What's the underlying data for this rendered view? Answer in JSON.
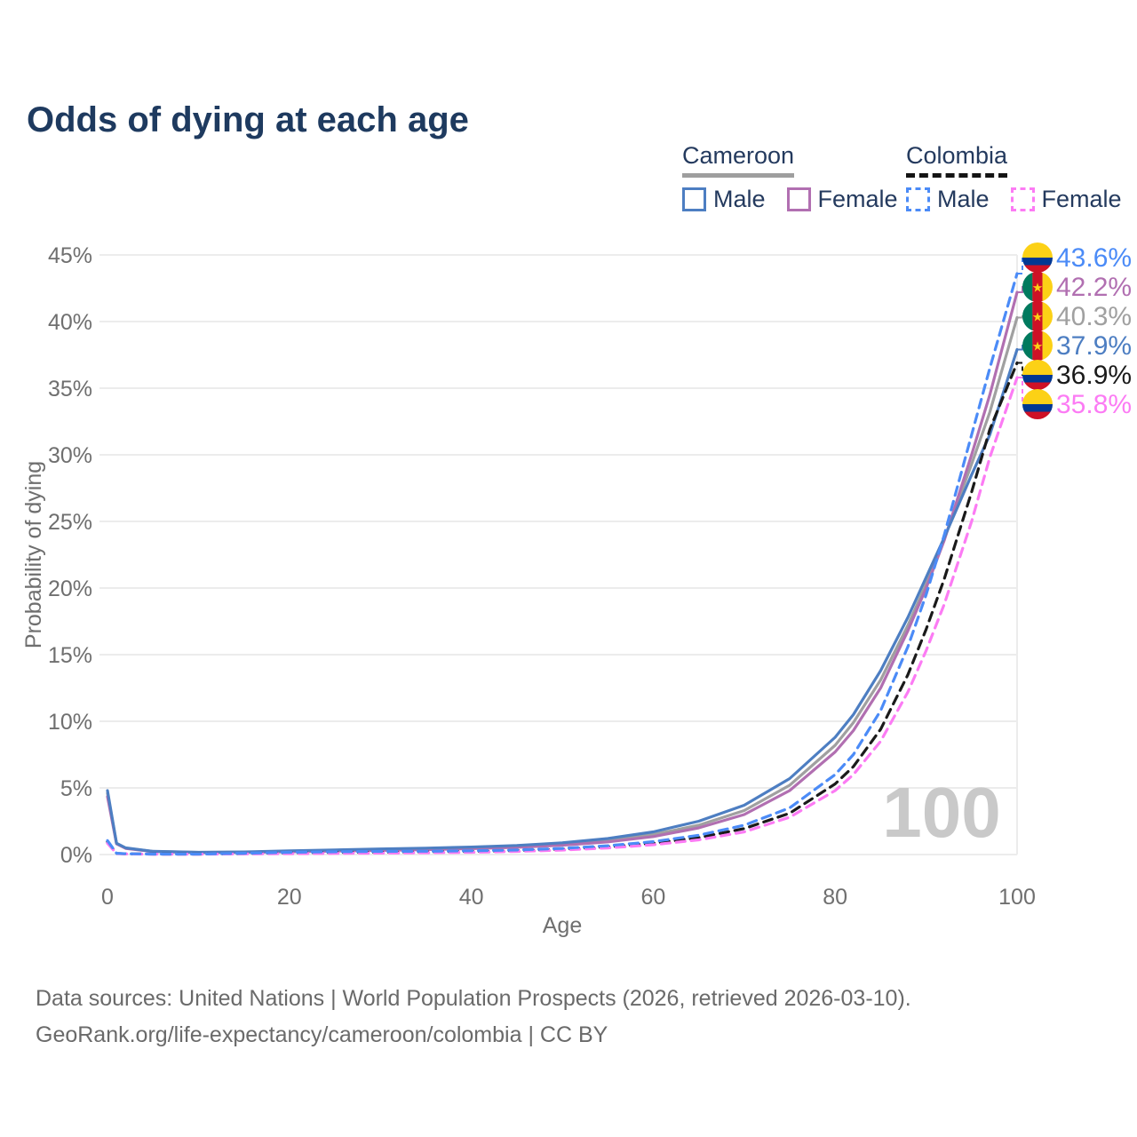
{
  "title": "Odds of dying at each age",
  "legend": {
    "groups": [
      {
        "id": "cameroon",
        "label": "Cameroon",
        "underline_style": "solid",
        "underline_color": "#9e9e9e",
        "items": [
          {
            "label": "Male",
            "color": "#4d7ec2",
            "dashed": false
          },
          {
            "label": "Female",
            "color": "#b16fb1",
            "dashed": false
          }
        ]
      },
      {
        "id": "colombia",
        "label": "Colombia",
        "underline_style": "dashed",
        "underline_color": "#141414",
        "items": [
          {
            "label": "Male",
            "color": "#4b8bf7",
            "dashed": true
          },
          {
            "label": "Female",
            "color": "#fc7bf4",
            "dashed": true
          }
        ]
      }
    ]
  },
  "chart_data": {
    "type": "line",
    "title": "Odds of dying at each age",
    "xlabel": "Age",
    "ylabel": "Probability of dying",
    "x_ticks": [
      0,
      20,
      40,
      60,
      80,
      100
    ],
    "y_ticks": [
      "0%",
      "5%",
      "10%",
      "15%",
      "20%",
      "25%",
      "30%",
      "35%",
      "40%",
      "45%"
    ],
    "xlim": [
      0,
      100
    ],
    "ylim_percent": [
      0,
      45
    ],
    "grid": "horizontal",
    "age_marker": "100",
    "ages": [
      0,
      1,
      2,
      5,
      10,
      15,
      20,
      25,
      30,
      35,
      40,
      45,
      50,
      55,
      60,
      65,
      70,
      75,
      80,
      82,
      85,
      88,
      90,
      92,
      95,
      97,
      100
    ],
    "series": [
      {
        "id": "cameroon-both",
        "name": "Cameroon Both sexes",
        "country": "Cameroon",
        "sex": "both",
        "color": "#a0a0a0",
        "dashed": false,
        "flag": "cameroon",
        "end_label": "40.3%",
        "values": [
          4.6,
          0.82,
          0.48,
          0.23,
          0.16,
          0.18,
          0.25,
          0.3,
          0.36,
          0.42,
          0.5,
          0.61,
          0.79,
          1.07,
          1.5,
          2.2,
          3.3,
          5.2,
          8.2,
          9.9,
          13.1,
          17.2,
          20.3,
          23.7,
          29.3,
          33.2,
          40.3
        ]
      },
      {
        "id": "cameroon-female",
        "name": "Cameroon Female",
        "country": "Cameroon",
        "sex": "female",
        "color": "#b16fb1",
        "dashed": false,
        "flag": "cameroon",
        "end_label": "42.2%",
        "values": [
          4.35,
          0.8,
          0.46,
          0.22,
          0.15,
          0.16,
          0.21,
          0.26,
          0.31,
          0.37,
          0.44,
          0.54,
          0.7,
          0.95,
          1.35,
          2.0,
          3.0,
          4.8,
          7.7,
          9.3,
          12.5,
          16.8,
          20.0,
          23.6,
          30.0,
          34.5,
          42.2
        ]
      },
      {
        "id": "cameroon-male",
        "name": "Cameroon Male",
        "country": "Cameroon",
        "sex": "male",
        "color": "#4d7ec2",
        "dashed": false,
        "flag": "cameroon",
        "end_label": "37.9%",
        "values": [
          4.8,
          0.85,
          0.5,
          0.24,
          0.17,
          0.19,
          0.28,
          0.35,
          0.42,
          0.48,
          0.56,
          0.68,
          0.88,
          1.2,
          1.7,
          2.5,
          3.7,
          5.7,
          8.8,
          10.5,
          13.8,
          17.8,
          20.8,
          23.8,
          28.5,
          31.5,
          37.9
        ]
      },
      {
        "id": "colombia-both",
        "name": "Colombia Both sexes",
        "country": "Colombia",
        "sex": "both",
        "color": "#1a1a1a",
        "dashed": true,
        "flag": "colombia",
        "end_label": "36.9%",
        "values": [
          0.95,
          0.08,
          0.055,
          0.03,
          0.03,
          0.07,
          0.12,
          0.15,
          0.17,
          0.19,
          0.22,
          0.28,
          0.39,
          0.57,
          0.85,
          1.27,
          1.95,
          3.1,
          5.3,
          6.6,
          9.4,
          13.5,
          16.9,
          20.7,
          27.2,
          31.9,
          36.9
        ]
      },
      {
        "id": "colombia-female",
        "name": "Colombia Female",
        "country": "Colombia",
        "sex": "female",
        "color": "#fc7bf4",
        "dashed": true,
        "flag": "colombia",
        "end_label": "35.8%",
        "values": [
          0.85,
          0.07,
          0.05,
          0.025,
          0.025,
          0.045,
          0.065,
          0.085,
          0.105,
          0.13,
          0.17,
          0.23,
          0.33,
          0.49,
          0.73,
          1.1,
          1.7,
          2.8,
          4.8,
          6.0,
          8.5,
          12.2,
          15.3,
          18.8,
          25.0,
          29.8,
          35.8
        ]
      },
      {
        "id": "colombia-male",
        "name": "Colombia Male",
        "country": "Colombia",
        "sex": "male",
        "color": "#4b8bf7",
        "dashed": true,
        "flag": "colombia",
        "end_label": "43.6%",
        "values": [
          1.05,
          0.09,
          0.06,
          0.035,
          0.035,
          0.09,
          0.17,
          0.21,
          0.23,
          0.25,
          0.28,
          0.34,
          0.46,
          0.66,
          0.97,
          1.45,
          2.2,
          3.5,
          6.0,
          7.5,
          10.8,
          15.6,
          19.5,
          24.0,
          31.5,
          36.5,
          43.6
        ]
      }
    ],
    "flag_colors": {
      "cameroon": {
        "green": "#007A5E",
        "red": "#CE1126",
        "yellow": "#FCD116",
        "star": "#FCD116"
      },
      "colombia": {
        "yellow": "#FCD116",
        "blue": "#003893",
        "red": "#CE1126"
      }
    }
  },
  "footer": {
    "line1": "Data sources: United Nations | World Population Prospects (2026, retrieved 2026-03-10).",
    "line2": "GeoRank.org/life-expectancy/cameroon/colombia | CC BY"
  }
}
